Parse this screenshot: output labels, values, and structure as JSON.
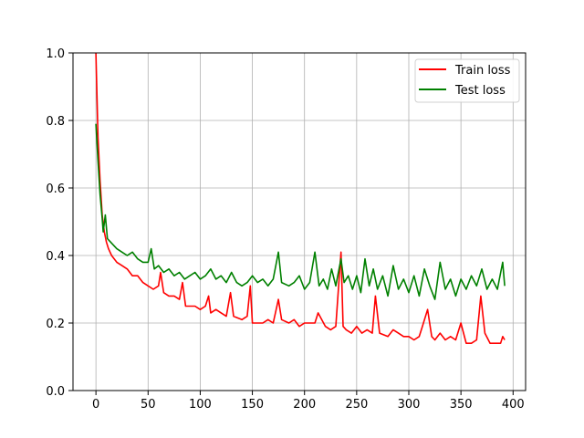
{
  "chart_data": {
    "type": "line",
    "title": "",
    "xlabel": "",
    "ylabel": "",
    "xlim": [
      -22,
      412
    ],
    "ylim": [
      0.0,
      1.0
    ],
    "x_ticks": [
      0,
      50,
      100,
      150,
      200,
      250,
      300,
      350,
      400
    ],
    "y_ticks": [
      0.0,
      0.2,
      0.4,
      0.6,
      0.8,
      1.0
    ],
    "x_tick_labels": [
      "0",
      "50",
      "100",
      "150",
      "200",
      "250",
      "300",
      "350",
      "400"
    ],
    "y_tick_labels": [
      "0.0",
      "0.2",
      "0.4",
      "0.6",
      "0.8",
      "1.0"
    ],
    "grid": true,
    "legend_position": "top-right",
    "series": [
      {
        "name": "Train loss",
        "color": "#ff0000",
        "points": [
          [
            0,
            1.0
          ],
          [
            2,
            0.75
          ],
          [
            4,
            0.62
          ],
          [
            6,
            0.52
          ],
          [
            8,
            0.47
          ],
          [
            10,
            0.44
          ],
          [
            12,
            0.42
          ],
          [
            15,
            0.4
          ],
          [
            20,
            0.38
          ],
          [
            25,
            0.37
          ],
          [
            30,
            0.36
          ],
          [
            35,
            0.34
          ],
          [
            40,
            0.34
          ],
          [
            45,
            0.32
          ],
          [
            50,
            0.31
          ],
          [
            55,
            0.3
          ],
          [
            60,
            0.31
          ],
          [
            62,
            0.35
          ],
          [
            65,
            0.29
          ],
          [
            70,
            0.28
          ],
          [
            75,
            0.28
          ],
          [
            80,
            0.27
          ],
          [
            83,
            0.32
          ],
          [
            86,
            0.25
          ],
          [
            90,
            0.25
          ],
          [
            95,
            0.25
          ],
          [
            100,
            0.24
          ],
          [
            105,
            0.25
          ],
          [
            108,
            0.28
          ],
          [
            110,
            0.23
          ],
          [
            115,
            0.24
          ],
          [
            120,
            0.23
          ],
          [
            125,
            0.22
          ],
          [
            129,
            0.29
          ],
          [
            132,
            0.22
          ],
          [
            140,
            0.21
          ],
          [
            145,
            0.22
          ],
          [
            148,
            0.31
          ],
          [
            150,
            0.2
          ],
          [
            160,
            0.2
          ],
          [
            165,
            0.21
          ],
          [
            170,
            0.2
          ],
          [
            175,
            0.27
          ],
          [
            178,
            0.21
          ],
          [
            185,
            0.2
          ],
          [
            190,
            0.21
          ],
          [
            195,
            0.19
          ],
          [
            200,
            0.2
          ],
          [
            210,
            0.2
          ],
          [
            213,
            0.23
          ],
          [
            220,
            0.19
          ],
          [
            225,
            0.18
          ],
          [
            230,
            0.19
          ],
          [
            235,
            0.41
          ],
          [
            237,
            0.19
          ],
          [
            240,
            0.18
          ],
          [
            245,
            0.17
          ],
          [
            250,
            0.19
          ],
          [
            255,
            0.17
          ],
          [
            260,
            0.18
          ],
          [
            265,
            0.17
          ],
          [
            268,
            0.28
          ],
          [
            272,
            0.17
          ],
          [
            280,
            0.16
          ],
          [
            285,
            0.18
          ],
          [
            290,
            0.17
          ],
          [
            295,
            0.16
          ],
          [
            300,
            0.16
          ],
          [
            305,
            0.15
          ],
          [
            310,
            0.16
          ],
          [
            313,
            0.19
          ],
          [
            318,
            0.24
          ],
          [
            322,
            0.16
          ],
          [
            325,
            0.15
          ],
          [
            330,
            0.17
          ],
          [
            335,
            0.15
          ],
          [
            340,
            0.16
          ],
          [
            345,
            0.15
          ],
          [
            350,
            0.2
          ],
          [
            355,
            0.14
          ],
          [
            360,
            0.14
          ],
          [
            365,
            0.15
          ],
          [
            369,
            0.28
          ],
          [
            373,
            0.17
          ],
          [
            378,
            0.14
          ],
          [
            383,
            0.14
          ],
          [
            388,
            0.14
          ],
          [
            390,
            0.16
          ],
          [
            392,
            0.15
          ]
        ]
      },
      {
        "name": "Test loss",
        "color": "#008000",
        "points": [
          [
            0,
            0.79
          ],
          [
            2,
            0.68
          ],
          [
            4,
            0.58
          ],
          [
            6,
            0.51
          ],
          [
            7,
            0.47
          ],
          [
            9,
            0.52
          ],
          [
            11,
            0.45
          ],
          [
            14,
            0.44
          ],
          [
            17,
            0.43
          ],
          [
            20,
            0.42
          ],
          [
            25,
            0.41
          ],
          [
            30,
            0.4
          ],
          [
            35,
            0.41
          ],
          [
            40,
            0.39
          ],
          [
            45,
            0.38
          ],
          [
            50,
            0.38
          ],
          [
            53,
            0.42
          ],
          [
            56,
            0.36
          ],
          [
            60,
            0.37
          ],
          [
            65,
            0.35
          ],
          [
            70,
            0.36
          ],
          [
            75,
            0.34
          ],
          [
            80,
            0.35
          ],
          [
            85,
            0.33
          ],
          [
            90,
            0.34
          ],
          [
            95,
            0.35
          ],
          [
            100,
            0.33
          ],
          [
            105,
            0.34
          ],
          [
            110,
            0.36
          ],
          [
            115,
            0.33
          ],
          [
            120,
            0.34
          ],
          [
            125,
            0.32
          ],
          [
            130,
            0.35
          ],
          [
            135,
            0.32
          ],
          [
            140,
            0.31
          ],
          [
            145,
            0.32
          ],
          [
            150,
            0.34
          ],
          [
            155,
            0.32
          ],
          [
            160,
            0.33
          ],
          [
            165,
            0.31
          ],
          [
            170,
            0.33
          ],
          [
            175,
            0.41
          ],
          [
            178,
            0.32
          ],
          [
            185,
            0.31
          ],
          [
            190,
            0.32
          ],
          [
            195,
            0.34
          ],
          [
            200,
            0.3
          ],
          [
            205,
            0.32
          ],
          [
            210,
            0.41
          ],
          [
            214,
            0.31
          ],
          [
            218,
            0.33
          ],
          [
            222,
            0.3
          ],
          [
            226,
            0.36
          ],
          [
            230,
            0.31
          ],
          [
            235,
            0.39
          ],
          [
            238,
            0.32
          ],
          [
            242,
            0.34
          ],
          [
            246,
            0.3
          ],
          [
            250,
            0.34
          ],
          [
            254,
            0.29
          ],
          [
            258,
            0.39
          ],
          [
            262,
            0.31
          ],
          [
            266,
            0.36
          ],
          [
            270,
            0.3
          ],
          [
            275,
            0.34
          ],
          [
            280,
            0.28
          ],
          [
            285,
            0.37
          ],
          [
            290,
            0.3
          ],
          [
            295,
            0.33
          ],
          [
            300,
            0.29
          ],
          [
            305,
            0.34
          ],
          [
            310,
            0.28
          ],
          [
            315,
            0.36
          ],
          [
            320,
            0.31
          ],
          [
            325,
            0.27
          ],
          [
            330,
            0.38
          ],
          [
            335,
            0.3
          ],
          [
            340,
            0.33
          ],
          [
            345,
            0.28
          ],
          [
            350,
            0.33
          ],
          [
            355,
            0.3
          ],
          [
            360,
            0.34
          ],
          [
            365,
            0.31
          ],
          [
            370,
            0.36
          ],
          [
            375,
            0.3
          ],
          [
            380,
            0.33
          ],
          [
            385,
            0.3
          ],
          [
            390,
            0.38
          ],
          [
            392,
            0.31
          ]
        ]
      }
    ]
  }
}
